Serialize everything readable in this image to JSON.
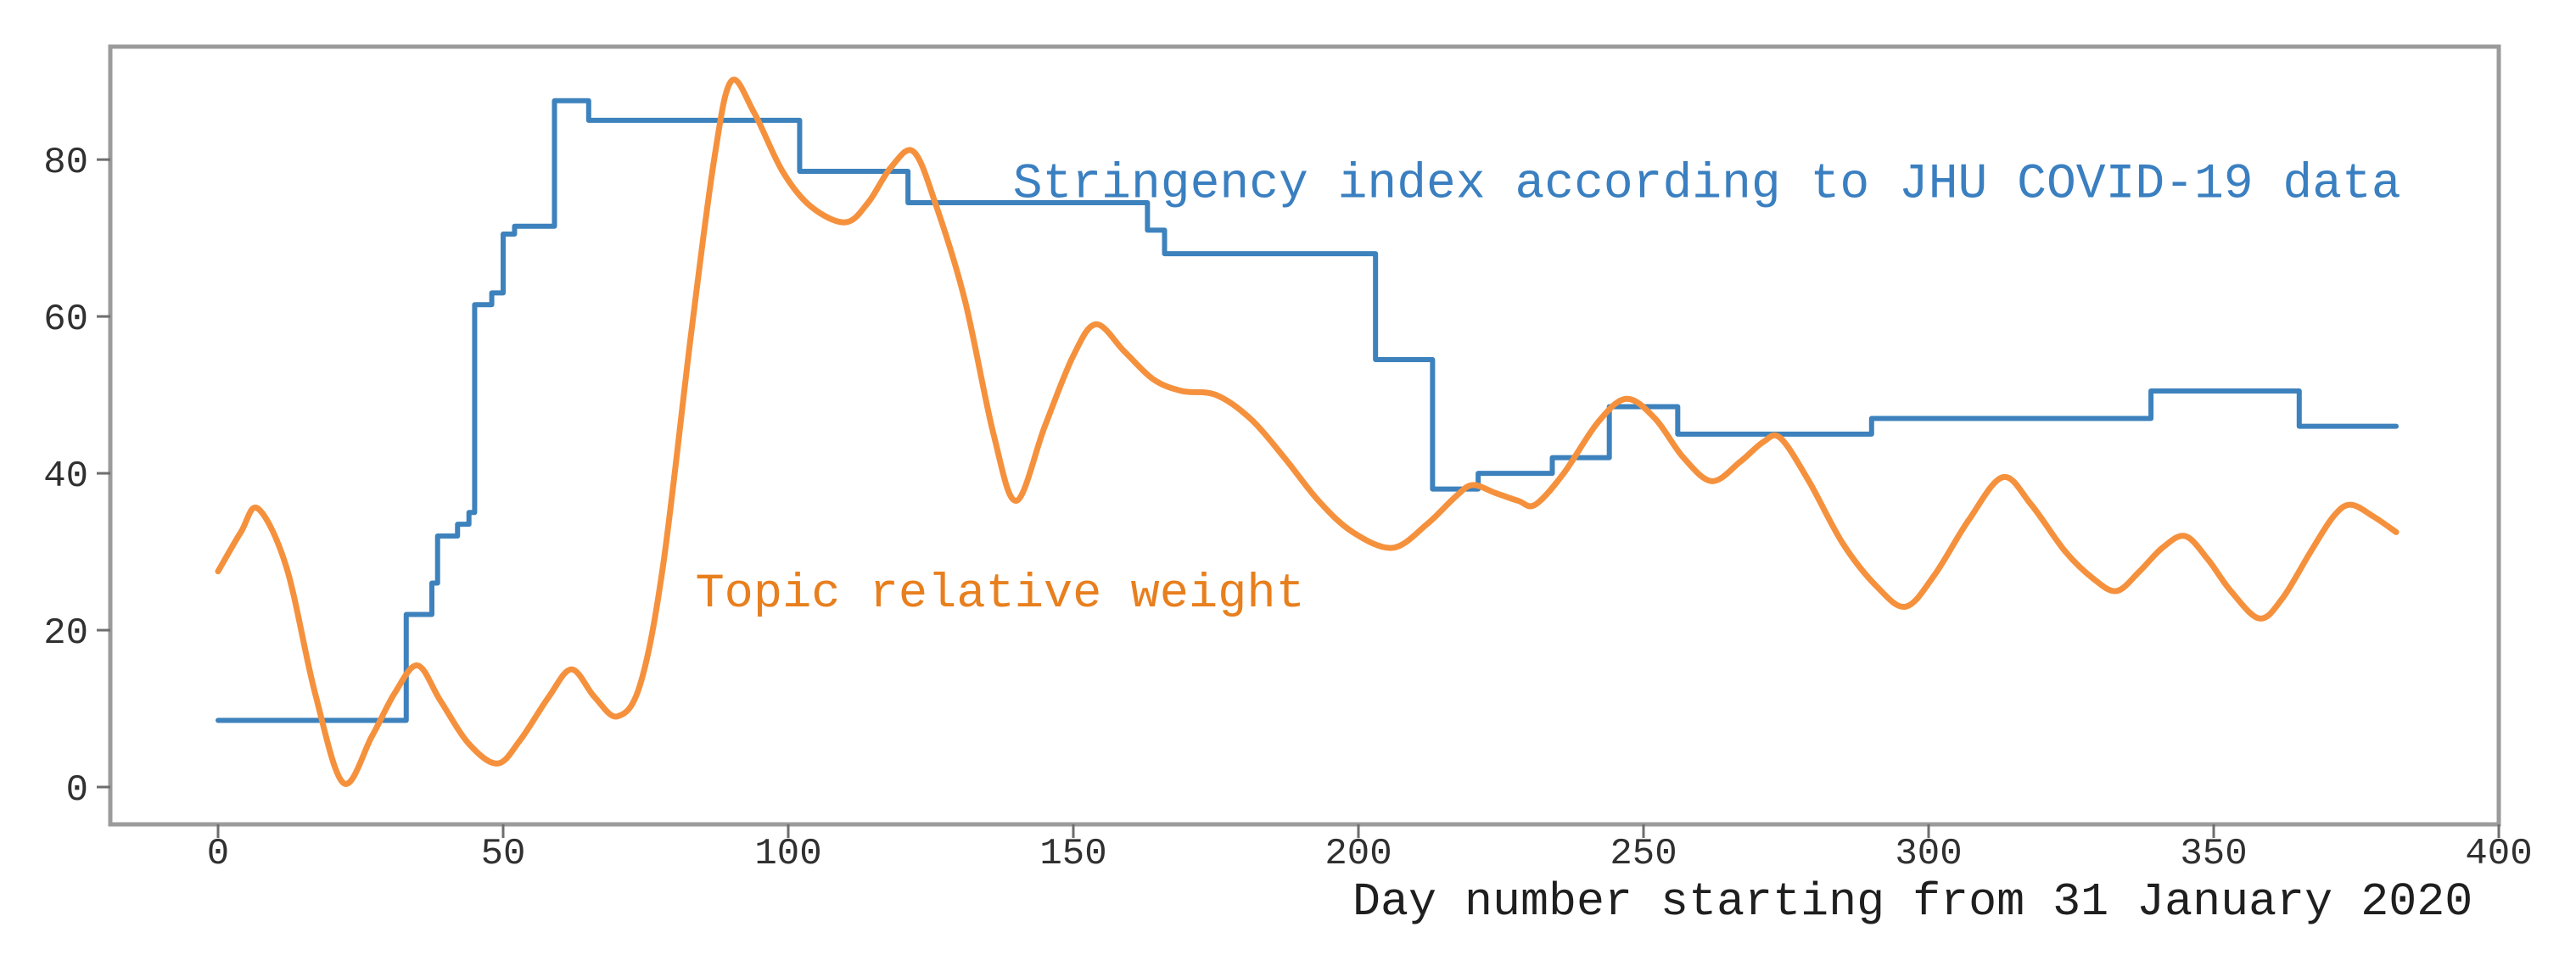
{
  "figure": {
    "background": "#ffffff",
    "spine_color": "#9b9b9b",
    "tick_mark_color": "#6e6e6e",
    "tick_label_color": "#303030"
  },
  "chart_data": {
    "type": "line",
    "title": "",
    "xlabel": "Day number starting from 31 January 2020",
    "ylabel": "",
    "xlim": [
      -18.9,
      400
    ],
    "ylim": [
      -4.76,
      94.4
    ],
    "x_ticks": [
      0,
      50,
      100,
      150,
      200,
      250,
      300,
      350,
      400
    ],
    "y_ticks": [
      0,
      20,
      40,
      60,
      80
    ],
    "grid": false,
    "legend_position": "inline-annotations",
    "series": [
      {
        "name": "Stringency index according to JHU COVID-19 data",
        "style": "step",
        "color": "#3d82bd",
        "points": [
          [
            0,
            8.5
          ],
          [
            33,
            22
          ],
          [
            37.5,
            26
          ],
          [
            38.5,
            32
          ],
          [
            42,
            33.5
          ],
          [
            44,
            35
          ],
          [
            45,
            61.5
          ],
          [
            48,
            63
          ],
          [
            50,
            70.5
          ],
          [
            52,
            71.5
          ],
          [
            59,
            87.5
          ],
          [
            65,
            85
          ],
          [
            102,
            78.5
          ],
          [
            121,
            74.5
          ],
          [
            163,
            71
          ],
          [
            166,
            68
          ],
          [
            203,
            54.5
          ],
          [
            213,
            38
          ],
          [
            221,
            40
          ],
          [
            234,
            42
          ],
          [
            244,
            48.5
          ],
          [
            256,
            45
          ],
          [
            290,
            47
          ],
          [
            339,
            50.5
          ],
          [
            365,
            46
          ],
          [
            382,
            46
          ]
        ]
      },
      {
        "name": "Topic relative weight",
        "style": "smooth",
        "color": "#f5913d",
        "points": [
          [
            0,
            27.5
          ],
          [
            4,
            32.5
          ],
          [
            7,
            35.5
          ],
          [
            12,
            28
          ],
          [
            17,
            12
          ],
          [
            22,
            0.5
          ],
          [
            27,
            6.5
          ],
          [
            31,
            12
          ],
          [
            35,
            15.5
          ],
          [
            39,
            11
          ],
          [
            44,
            5.5
          ],
          [
            49,
            3
          ],
          [
            53,
            6
          ],
          [
            58,
            11.5
          ],
          [
            62,
            15
          ],
          [
            66,
            11.5
          ],
          [
            70,
            9
          ],
          [
            74,
            13
          ],
          [
            78,
            28
          ],
          [
            83,
            58
          ],
          [
            87,
            80
          ],
          [
            90,
            90
          ],
          [
            94,
            86
          ],
          [
            99,
            78.5
          ],
          [
            104,
            74
          ],
          [
            110,
            72
          ],
          [
            114,
            74.5
          ],
          [
            118,
            79
          ],
          [
            122,
            81
          ],
          [
            126,
            74
          ],
          [
            131,
            62
          ],
          [
            136,
            45
          ],
          [
            140,
            36.5
          ],
          [
            145,
            46
          ],
          [
            150,
            55
          ],
          [
            154,
            59
          ],
          [
            159,
            55.5
          ],
          [
            164,
            52
          ],
          [
            169,
            50.5
          ],
          [
            175,
            50
          ],
          [
            181,
            47
          ],
          [
            187,
            42
          ],
          [
            193,
            36.5
          ],
          [
            199,
            32.5
          ],
          [
            206,
            30.5
          ],
          [
            212,
            33.5
          ],
          [
            217,
            37
          ],
          [
            220,
            38.5
          ],
          [
            224,
            37.5
          ],
          [
            228,
            36.5
          ],
          [
            231,
            36
          ],
          [
            236,
            40
          ],
          [
            242,
            46.5
          ],
          [
            247,
            49.5
          ],
          [
            252,
            47
          ],
          [
            257,
            42
          ],
          [
            262,
            39
          ],
          [
            267,
            41.5
          ],
          [
            271,
            44
          ],
          [
            274,
            44.5
          ],
          [
            279,
            39
          ],
          [
            285,
            31
          ],
          [
            291,
            25.5
          ],
          [
            296,
            23
          ],
          [
            301,
            27
          ],
          [
            307,
            34
          ],
          [
            313,
            39.5
          ],
          [
            318,
            36
          ],
          [
            324,
            30
          ],
          [
            329,
            26.5
          ],
          [
            333,
            25
          ],
          [
            337,
            27.5
          ],
          [
            341,
            30.5
          ],
          [
            345,
            32
          ],
          [
            349,
            29
          ],
          [
            353,
            25
          ],
          [
            358,
            21.5
          ],
          [
            362,
            24
          ],
          [
            367,
            30
          ],
          [
            371,
            34.5
          ],
          [
            374,
            36
          ],
          [
            378,
            34.5
          ],
          [
            382,
            32.5
          ]
        ]
      }
    ],
    "annotations": [
      {
        "text": "Stringency index according to JHU COVID-19 data",
        "color": "#3a7fc0",
        "x": 139.4,
        "y": 77.4,
        "font_px": 58
      },
      {
        "text": "Topic relative weight",
        "color": "#e87f1e",
        "x": 83.7,
        "y": 25.2,
        "font_px": 57
      }
    ]
  }
}
